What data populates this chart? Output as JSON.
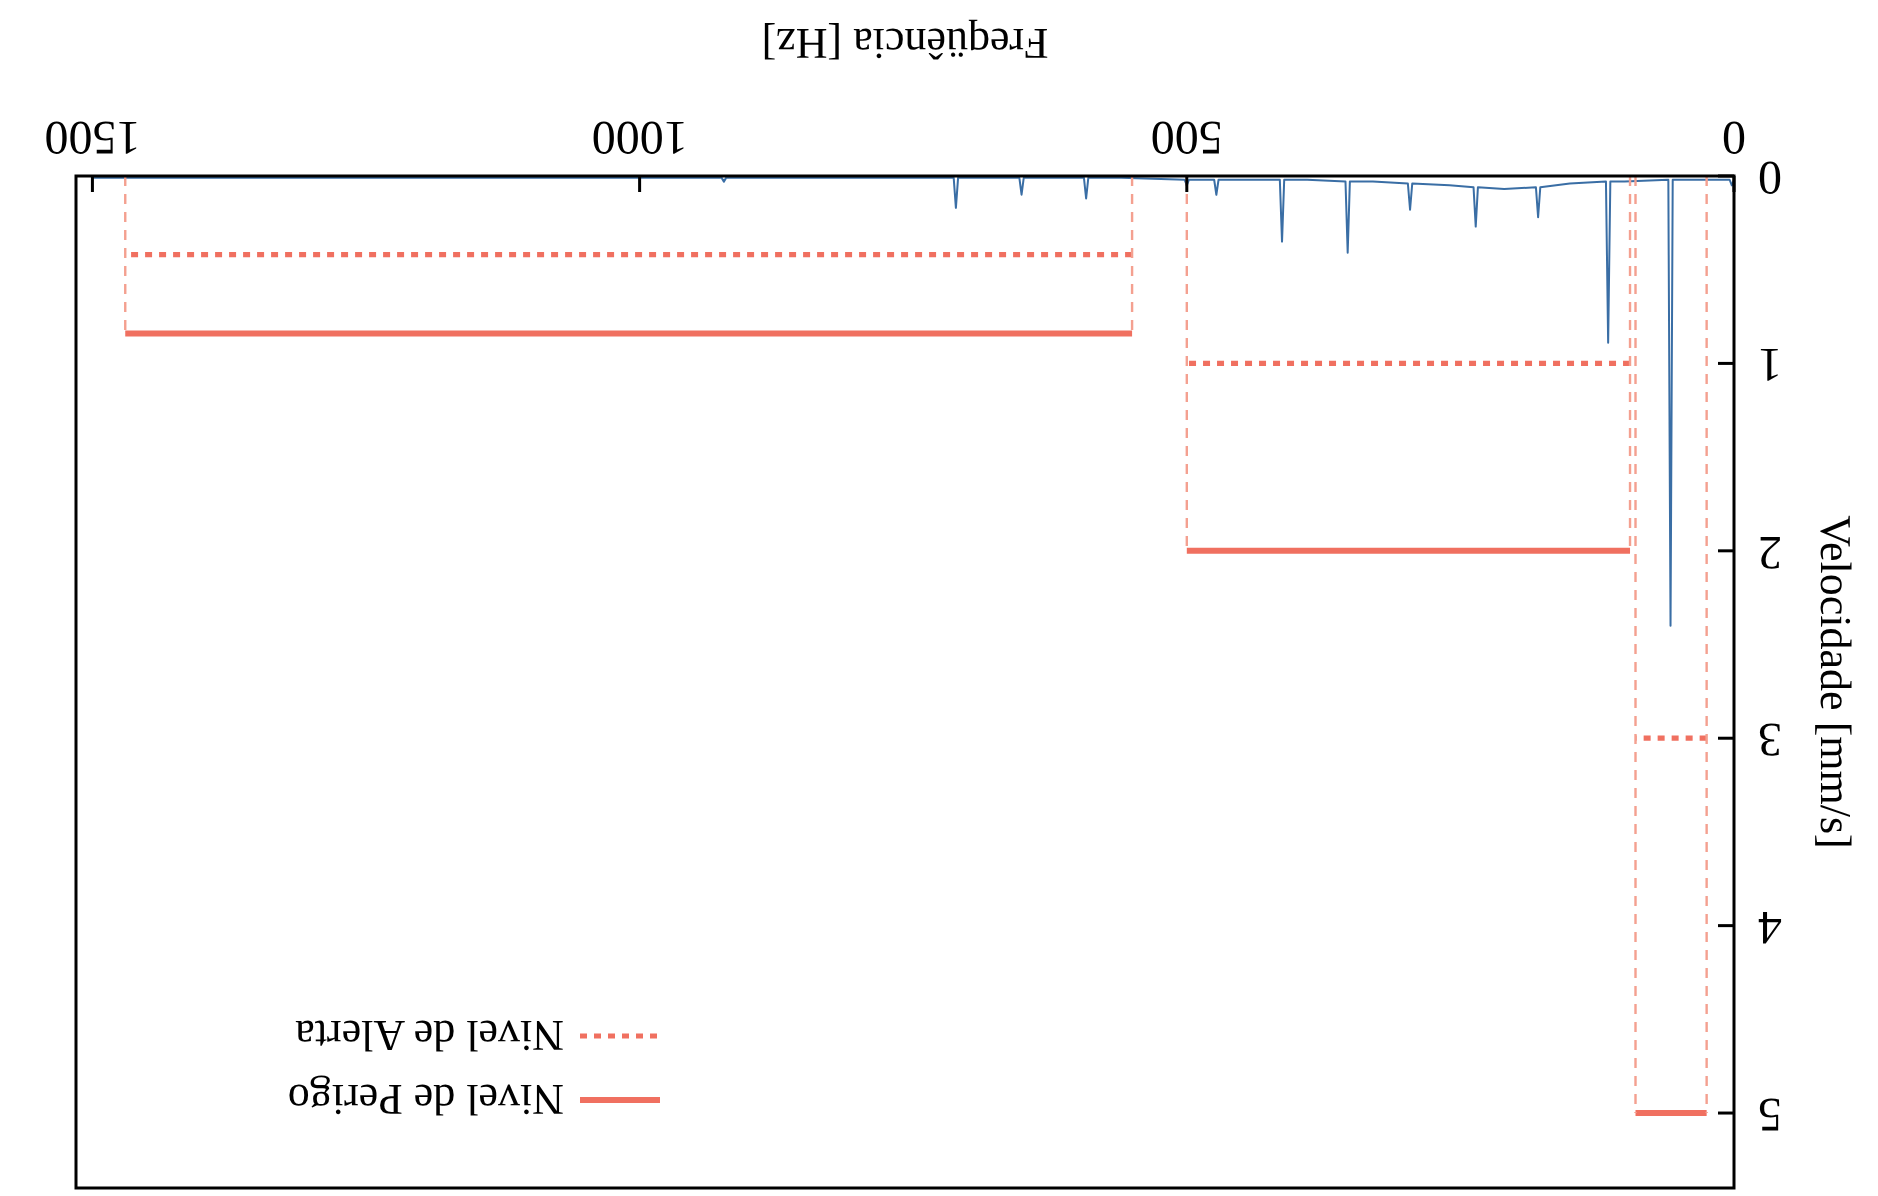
{
  "chart_data": {
    "type": "line",
    "xlabel": "Freqüência [Hz]",
    "ylabel": "Velocidade [mm/s]",
    "xlim": [
      1515,
      0
    ],
    "xticks": [
      0,
      500,
      1000,
      1500
    ],
    "ylim": [
      5.4,
      0
    ],
    "yticks": [
      0,
      1,
      2,
      3,
      4,
      5
    ],
    "grid": false,
    "legend": "bottom left",
    "series": [
      {
        "color": "#3a6ea5",
        "line_style": "solid",
        "x": [
          0,
          2,
          4,
          20,
          56,
          58,
          60,
          100,
          113,
          115,
          117,
          150,
          177,
          179,
          181,
          210,
          234,
          236,
          238,
          260,
          294,
          296,
          298,
          330,
          351,
          353,
          355,
          390,
          411,
          413,
          415,
          450,
          471,
          473,
          475,
          498,
          500,
          502,
          560,
          590,
          592,
          594,
          620,
          649,
          651,
          653,
          690,
          709,
          711,
          713,
          760,
          921,
          923,
          925,
          1000,
          1200,
          1500
        ],
        "values": [
          0.02,
          0.05,
          0.02,
          0.02,
          0.02,
          2.4,
          0.02,
          0.03,
          0.03,
          0.89,
          0.03,
          0.04,
          0.06,
          0.22,
          0.06,
          0.07,
          0.06,
          0.27,
          0.06,
          0.05,
          0.04,
          0.18,
          0.04,
          0.03,
          0.03,
          0.41,
          0.03,
          0.02,
          0.02,
          0.35,
          0.02,
          0.02,
          0.02,
          0.1,
          0.02,
          0.02,
          0.05,
          0.02,
          0.01,
          0.01,
          0.12,
          0.01,
          0.01,
          0.01,
          0.1,
          0.01,
          0.01,
          0.01,
          0.17,
          0.01,
          0.01,
          0.01,
          0.03,
          0.01,
          0.01,
          0.01,
          0.01
        ]
      },
      {
        "name": "Nivel de Perigo",
        "color": "#f07060",
        "line_style": "solid",
        "x": [
          25,
          90,
          null,
          95,
          500,
          null,
          550,
          1470
        ],
        "values": [
          5,
          5,
          null,
          2,
          2,
          null,
          0.84,
          0.84
        ]
      },
      {
        "name": "Nivel de Alerta",
        "color": "#f07060",
        "line_style": "dotted",
        "x": [
          25,
          90,
          null,
          95,
          500,
          null,
          550,
          1470
        ],
        "values": [
          3,
          3,
          null,
          1,
          1,
          null,
          0.42,
          0.42
        ]
      },
      {
        "color": "#f4a090",
        "line_style": "dashed",
        "x": [
          25,
          25,
          null,
          90,
          90,
          null,
          95,
          95,
          null,
          500,
          500,
          null,
          550,
          550,
          null,
          1470,
          1470
        ],
        "values": [
          0,
          5,
          null,
          0,
          5,
          null,
          0,
          2,
          null,
          0,
          2,
          null,
          0,
          0.84,
          null,
          0,
          0.84
        ]
      }
    ]
  }
}
